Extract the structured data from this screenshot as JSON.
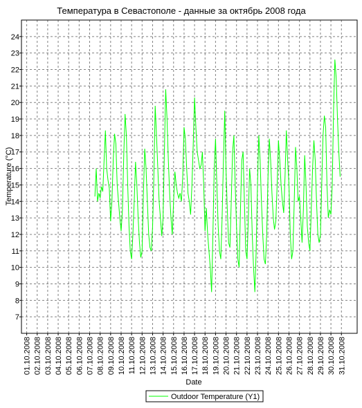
{
  "chart_data": {
    "type": "line",
    "title": "Температура в Севастополе - данные за октябрь 2008 года",
    "xlabel": "Date",
    "ylabel": "Temperature (°C)",
    "ylim": [
      6,
      25
    ],
    "y_ticks": [
      7,
      8,
      9,
      10,
      11,
      12,
      13,
      14,
      15,
      16,
      17,
      18,
      19,
      20,
      21,
      22,
      23,
      24
    ],
    "x_tick_labels": [
      "01.10.2008",
      "02.10.2008",
      "03.10.2008",
      "04.10.2008",
      "05.10.2008",
      "06.10.2008",
      "07.10.2008",
      "08.10.2008",
      "09.10.2008",
      "10.10.2008",
      "11.10.2008",
      "12.10.2008",
      "13.10.2008",
      "14.10.2008",
      "15.10.2008",
      "16.10.2008",
      "17.10.2008",
      "18.10.2008",
      "19.10.2008",
      "20.10.2008",
      "21.10.2008",
      "22.10.2008",
      "23.10.2008",
      "24.10.2008",
      "25.10.2008",
      "26.10.2008",
      "27.10.2008",
      "28.10.2008",
      "29.10.2008",
      "30.10.2008",
      "31.10.2008"
    ],
    "xlim": [
      "01.10.2008",
      "01.11.2008"
    ],
    "grid": true,
    "legend_position": "bottom",
    "series": [
      {
        "name": "Outdoor Temperature (Y1)",
        "color": "#00ff00",
        "points": [
          [
            "07.10.2008 12:00",
            14.3
          ],
          [
            "07.10.2008 15:00",
            16.0
          ],
          [
            "07.10.2008 18:00",
            14.0
          ],
          [
            "07.10.2008 21:00",
            14.5
          ],
          [
            "08.10.2008 00:00",
            14.2
          ],
          [
            "08.10.2008 03:00",
            14.9
          ],
          [
            "08.10.2008 06:00",
            14.6
          ],
          [
            "08.10.2008 09:00",
            16.5
          ],
          [
            "08.10.2008 12:00",
            18.3
          ],
          [
            "08.10.2008 15:00",
            16.0
          ],
          [
            "08.10.2008 18:00",
            15.3
          ],
          [
            "08.10.2008 21:00",
            14.8
          ],
          [
            "09.10.2008 00:00",
            12.8
          ],
          [
            "09.10.2008 03:00",
            14.0
          ],
          [
            "09.10.2008 06:00",
            16.5
          ],
          [
            "09.10.2008 09:00",
            18.1
          ],
          [
            "09.10.2008 12:00",
            17.5
          ],
          [
            "09.10.2008 15:00",
            15.0
          ],
          [
            "09.10.2008 18:00",
            14.0
          ],
          [
            "09.10.2008 21:00",
            13.0
          ],
          [
            "10.10.2008 00:00",
            12.2
          ],
          [
            "10.10.2008 03:00",
            13.5
          ],
          [
            "10.10.2008 06:00",
            16.8
          ],
          [
            "10.10.2008 09:00",
            19.3
          ],
          [
            "10.10.2008 12:00",
            18.0
          ],
          [
            "10.10.2008 15:00",
            15.0
          ],
          [
            "10.10.2008 18:00",
            12.5
          ],
          [
            "10.10.2008 21:00",
            11.0
          ],
          [
            "11.10.2008 00:00",
            10.5
          ],
          [
            "11.10.2008 03:00",
            12.0
          ],
          [
            "11.10.2008 06:00",
            14.0
          ],
          [
            "11.10.2008 09:00",
            16.4
          ],
          [
            "11.10.2008 12:00",
            15.0
          ],
          [
            "11.10.2008 15:00",
            13.0
          ],
          [
            "11.10.2008 18:00",
            11.5
          ],
          [
            "11.10.2008 21:00",
            10.6
          ],
          [
            "12.10.2008 00:00",
            11.0
          ],
          [
            "12.10.2008 03:00",
            14.5
          ],
          [
            "12.10.2008 06:00",
            17.2
          ],
          [
            "12.10.2008 09:00",
            16.0
          ],
          [
            "12.10.2008 12:00",
            14.0
          ],
          [
            "12.10.2008 15:00",
            12.0
          ],
          [
            "12.10.2008 18:00",
            11.2
          ],
          [
            "12.10.2008 21:00",
            11.0
          ],
          [
            "13.10.2008 00:00",
            12.5
          ],
          [
            "13.10.2008 03:00",
            15.5
          ],
          [
            "13.10.2008 06:00",
            19.8
          ],
          [
            "13.10.2008 09:00",
            18.0
          ],
          [
            "13.10.2008 12:00",
            16.0
          ],
          [
            "13.10.2008 15:00",
            14.0
          ],
          [
            "13.10.2008 18:00",
            13.0
          ],
          [
            "13.10.2008 21:00",
            11.9
          ],
          [
            "14.10.2008 00:00",
            13.0
          ],
          [
            "14.10.2008 03:00",
            17.0
          ],
          [
            "14.10.2008 06:00",
            20.8
          ],
          [
            "14.10.2008 09:00",
            19.0
          ],
          [
            "14.10.2008 12:00",
            16.5
          ],
          [
            "14.10.2008 15:00",
            14.5
          ],
          [
            "14.10.2008 18:00",
            13.0
          ],
          [
            "14.10.2008 21:00",
            12.0
          ],
          [
            "15.10.2008 00:00",
            14.0
          ],
          [
            "15.10.2008 03:00",
            15.8
          ],
          [
            "15.10.2008 06:00",
            15.0
          ],
          [
            "15.10.2008 09:00",
            14.5
          ],
          [
            "15.10.2008 12:00",
            14.2
          ],
          [
            "15.10.2008 15:00",
            14.5
          ],
          [
            "15.10.2008 18:00",
            14.0
          ],
          [
            "15.10.2008 21:00",
            15.5
          ],
          [
            "16.10.2008 00:00",
            18.5
          ],
          [
            "16.10.2008 03:00",
            17.8
          ],
          [
            "16.10.2008 06:00",
            16.0
          ],
          [
            "16.10.2008 09:00",
            14.5
          ],
          [
            "16.10.2008 12:00",
            14.0
          ],
          [
            "16.10.2008 15:00",
            13.2
          ],
          [
            "16.10.2008 18:00",
            15.0
          ],
          [
            "16.10.2008 21:00",
            17.5
          ],
          [
            "17.10.2008 00:00",
            20.3
          ],
          [
            "17.10.2008 03:00",
            18.5
          ],
          [
            "17.10.2008 06:00",
            17.0
          ],
          [
            "17.10.2008 09:00",
            16.5
          ],
          [
            "17.10.2008 12:00",
            16.0
          ],
          [
            "17.10.2008 15:00",
            16.2
          ],
          [
            "17.10.2008 18:00",
            17.0
          ],
          [
            "17.10.2008 21:00",
            15.0
          ],
          [
            "18.10.2008 00:00",
            12.2
          ],
          [
            "18.10.2008 03:00",
            13.6
          ],
          [
            "18.10.2008 06:00",
            12.0
          ],
          [
            "18.10.2008 09:00",
            11.0
          ],
          [
            "18.10.2008 12:00",
            10.0
          ],
          [
            "18.10.2008 15:00",
            8.5
          ],
          [
            "18.10.2008 18:00",
            12.0
          ],
          [
            "18.10.2008 21:00",
            16.0
          ],
          [
            "19.10.2008 00:00",
            17.8
          ],
          [
            "19.10.2008 03:00",
            15.0
          ],
          [
            "19.10.2008 06:00",
            12.5
          ],
          [
            "19.10.2008 09:00",
            11.0
          ],
          [
            "19.10.2008 12:00",
            10.5
          ],
          [
            "19.10.2008 15:00",
            13.0
          ],
          [
            "19.10.2008 18:00",
            16.5
          ],
          [
            "19.10.2008 21:00",
            19.5
          ],
          [
            "20.10.2008 00:00",
            16.0
          ],
          [
            "20.10.2008 03:00",
            13.5
          ],
          [
            "20.10.2008 06:00",
            11.5
          ],
          [
            "20.10.2008 09:00",
            11.2
          ],
          [
            "20.10.2008 12:00",
            14.0
          ],
          [
            "20.10.2008 15:00",
            17.0
          ],
          [
            "20.10.2008 18:00",
            18.0
          ],
          [
            "20.10.2008 21:00",
            15.0
          ],
          [
            "21.10.2008 00:00",
            12.5
          ],
          [
            "21.10.2008 03:00",
            10.5
          ],
          [
            "21.10.2008 06:00",
            10.0
          ],
          [
            "21.10.2008 09:00",
            13.5
          ],
          [
            "21.10.2008 12:00",
            16.5
          ],
          [
            "21.10.2008 15:00",
            17.0
          ],
          [
            "21.10.2008 18:00",
            14.0
          ],
          [
            "21.10.2008 21:00",
            11.0
          ],
          [
            "22.10.2008 00:00",
            10.5
          ],
          [
            "22.10.2008 03:00",
            13.0
          ],
          [
            "22.10.2008 06:00",
            16.0
          ],
          [
            "22.10.2008 09:00",
            15.0
          ],
          [
            "22.10.2008 12:00",
            12.0
          ],
          [
            "22.10.2008 15:00",
            10.0
          ],
          [
            "22.10.2008 18:00",
            8.5
          ],
          [
            "22.10.2008 21:00",
            11.0
          ],
          [
            "23.10.2008 00:00",
            15.0
          ],
          [
            "23.10.2008 03:00",
            18.0
          ],
          [
            "23.10.2008 06:00",
            16.5
          ],
          [
            "23.10.2008 09:00",
            14.0
          ],
          [
            "23.10.2008 12:00",
            12.0
          ],
          [
            "23.10.2008 15:00",
            10.5
          ],
          [
            "23.10.2008 18:00",
            10.2
          ],
          [
            "23.10.2008 21:00",
            12.0
          ],
          [
            "24.10.2008 00:00",
            15.5
          ],
          [
            "24.10.2008 03:00",
            17.8
          ],
          [
            "24.10.2008 06:00",
            16.5
          ],
          [
            "24.10.2008 09:00",
            14.5
          ],
          [
            "24.10.2008 12:00",
            13.0
          ],
          [
            "24.10.2008 15:00",
            12.3
          ],
          [
            "24.10.2008 18:00",
            12.8
          ],
          [
            "24.10.2008 21:00",
            15.0
          ],
          [
            "25.10.2008 00:00",
            17.7
          ],
          [
            "25.10.2008 03:00",
            16.5
          ],
          [
            "25.10.2008 06:00",
            15.0
          ],
          [
            "25.10.2008 09:00",
            14.0
          ],
          [
            "25.10.2008 12:00",
            13.3
          ],
          [
            "25.10.2008 15:00",
            15.5
          ],
          [
            "25.10.2008 18:00",
            18.3
          ],
          [
            "25.10.2008 21:00",
            16.5
          ],
          [
            "26.10.2008 00:00",
            15.0
          ],
          [
            "26.10.2008 03:00",
            12.0
          ],
          [
            "26.10.2008 06:00",
            10.5
          ],
          [
            "26.10.2008 09:00",
            11.0
          ],
          [
            "26.10.2008 12:00",
            14.0
          ],
          [
            "26.10.2008 15:00",
            17.3
          ],
          [
            "26.10.2008 18:00",
            16.0
          ],
          [
            "26.10.2008 21:00",
            14.0
          ],
          [
            "27.10.2008 00:00",
            14.3
          ],
          [
            "27.10.2008 03:00",
            13.0
          ],
          [
            "27.10.2008 06:00",
            11.5
          ],
          [
            "27.10.2008 09:00",
            13.5
          ],
          [
            "27.10.2008 12:00",
            16.8
          ],
          [
            "27.10.2008 15:00",
            15.0
          ],
          [
            "27.10.2008 18:00",
            12.5
          ],
          [
            "27.10.2008 21:00",
            11.5
          ],
          [
            "28.10.2008 00:00",
            11.0
          ],
          [
            "28.10.2008 03:00",
            13.5
          ],
          [
            "28.10.2008 06:00",
            16.0
          ],
          [
            "28.10.2008 09:00",
            17.7
          ],
          [
            "28.10.2008 12:00",
            16.5
          ],
          [
            "28.10.2008 15:00",
            14.0
          ],
          [
            "28.10.2008 18:00",
            12.0
          ],
          [
            "28.10.2008 21:00",
            11.5
          ],
          [
            "29.10.2008 00:00",
            12.0
          ],
          [
            "29.10.2008 03:00",
            15.0
          ],
          [
            "29.10.2008 06:00",
            18.0
          ],
          [
            "29.10.2008 09:00",
            19.2
          ],
          [
            "29.10.2008 12:00",
            18.5
          ],
          [
            "29.10.2008 15:00",
            15.0
          ],
          [
            "29.10.2008 18:00",
            13.0
          ],
          [
            "29.10.2008 21:00",
            13.5
          ],
          [
            "30.10.2008 00:00",
            13.2
          ],
          [
            "30.10.2008 03:00",
            15.0
          ],
          [
            "30.10.2008 06:00",
            19.5
          ],
          [
            "30.10.2008 09:00",
            22.6
          ],
          [
            "30.10.2008 12:00",
            21.5
          ],
          [
            "30.10.2008 15:00",
            19.0
          ],
          [
            "30.10.2008 18:00",
            17.0
          ],
          [
            "30.10.2008 21:00",
            15.5
          ]
        ]
      }
    ]
  }
}
